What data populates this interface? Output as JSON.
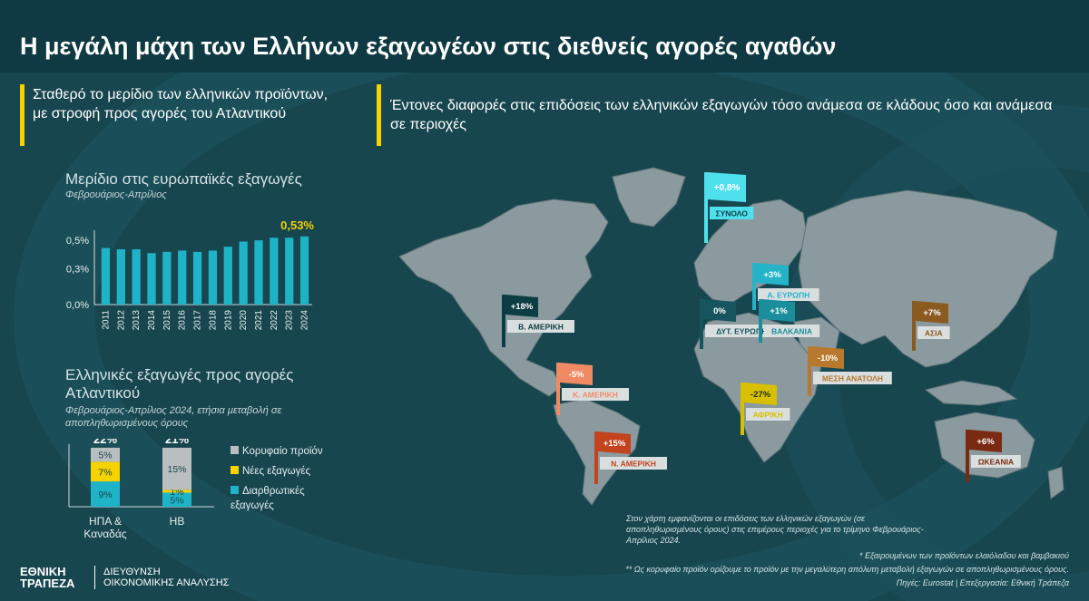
{
  "title": "Η μεγάλη μάχη των Ελλήνων εξαγωγέων στις διεθνείς αγορές αγαθών",
  "left_headline": "Σταθερό το μερίδιο των ελληνικών προϊόντων, με στροφή προς αγορές του Ατλαντικού",
  "right_headline": "Έντονες διαφορές στις επιδόσεις των ελληνικών εξαγωγών τόσο ανάμεσα σε κλάδους όσο και ανάμεσα σε περιοχές",
  "colors": {
    "bar_teal": "#1fb3c8",
    "highlight_yellow": "#f5d200",
    "bg": "#17464f",
    "gray": "#b9bec0"
  },
  "chart_data": [
    {
      "type": "bar",
      "title": "Μερίδιο στις ευρωπαϊκές εξαγωγές",
      "subtitle": "Φεβρουάριος-Απρίλιος",
      "categories": [
        "2011",
        "2012",
        "2013",
        "2014",
        "2015",
        "2016",
        "2017",
        "2018",
        "2019",
        "2020",
        "2021",
        "2022",
        "2023",
        "2024"
      ],
      "values": [
        0.44,
        0.43,
        0.43,
        0.4,
        0.41,
        0.42,
        0.41,
        0.42,
        0.45,
        0.49,
        0.5,
        0.52,
        0.52,
        0.53
      ],
      "ylim": [
        0,
        0.55
      ],
      "yticks": [
        "0,0%",
        "0,3%",
        "0,5%"
      ],
      "ytick_values": [
        0,
        0.28,
        0.5
      ],
      "highlight_label": "0,53%",
      "grid": false
    },
    {
      "type": "bar",
      "stacked": true,
      "title": "Ελληνικές εξαγωγές προς αγορές Ατλαντικού",
      "subtitle": "Φεβρουάριος-Απρίλιος 2024, ετήσια μεταβολή σε αποπληθωρισμένους όρους",
      "categories": [
        "ΗΠΑ & Καναδάς",
        "ΗΒ"
      ],
      "totals": [
        "22%",
        "21%"
      ],
      "series": [
        {
          "name": "Διαρθρωτικές εξαγωγές",
          "color": "#1fb3c8",
          "values": [
            9,
            5
          ],
          "labels": [
            "9%",
            "5%"
          ]
        },
        {
          "name": "Νέες εξαγωγές",
          "color": "#f5d200",
          "values": [
            7,
            1
          ],
          "labels": [
            "7%",
            "1%"
          ]
        },
        {
          "name": "Κορυφαίο προϊόν",
          "color": "#b9bec0",
          "values": [
            5,
            15
          ],
          "labels": [
            "5%",
            "15%"
          ]
        }
      ],
      "legend_order": [
        "Κορυφαίο προϊόν",
        "Νέες εξαγωγές",
        "Διαρθρωτικές εξαγωγές"
      ],
      "legend_position": "right"
    },
    {
      "type": "map",
      "items": [
        {
          "region": "ΣΥΝΟΛΟ",
          "value": "+0,8%",
          "color": "#4fe0ee"
        },
        {
          "region": "Β. ΑΜΕΡΙΚΗ",
          "value": "+18%",
          "color": "#0c3d44"
        },
        {
          "region": "ΔΥΤ. ΕΥΡΩΠΗ",
          "value": "0%",
          "color": "#16555e"
        },
        {
          "region": "Α. ΕΥΡΩΠΗ",
          "value": "+3%",
          "color": "#25b4c7"
        },
        {
          "region": "ΒΑΛΚΑΝΙΑ",
          "value": "+1%",
          "color": "#1a8e9b"
        },
        {
          "region": "ΑΣΙΑ",
          "value": "+7%",
          "color": "#8a5a1f"
        },
        {
          "region": "ΜΕΣΗ ΑΝΑΤΟΛΗ",
          "value": "-10%",
          "color": "#b8782d"
        },
        {
          "region": "Κ. ΑΜΕΡΙΚΗ",
          "value": "-5%",
          "color": "#f08a64"
        },
        {
          "region": "ΑΦΡΙΚΗ",
          "value": "-27%",
          "color": "#d8c000"
        },
        {
          "region": "Ν. ΑΜΕΡΙΚΗ",
          "value": "+15%",
          "color": "#c2431e"
        },
        {
          "region": "ΩΚΕΑΝΙΑ",
          "value": "+6%",
          "color": "#7a2a12"
        }
      ]
    }
  ],
  "map_note": "Στον χάρτη εμφανίζονται οι επιδόσεις των ελληνικών εξαγωγών (σε αποπληθωρισμένους όρους) στις επιμέρους περιοχές για το τρίμηνο Φεβρουάριος-Απρίλιος 2024.",
  "footnote1": "* Εξαιρουμένων των προϊόντων ελαιόλαδου και βαμβακιού",
  "footnote2": "** Ως κορυφαίο προϊόν ορίζουμε το προϊόν με την μεγαλύτερη απόλυτη μεταβολή εξαγωγών σε αποπληθωρισμένους όρους.",
  "footnote3": "Πηγές: Eurostat | Επεξεργασία: Εθνική Τράπεζα",
  "logo": {
    "line1": "ΕΘΝΙΚΗ",
    "line2": "ΤΡΑΠΕΖΑ",
    "division1": "ΔΙΕΥΘΥΝΣΗ",
    "division2": "ΟΙΚΟΝΟΜΙΚΗΣ ΑΝΑΛΥΣΗΣ"
  }
}
